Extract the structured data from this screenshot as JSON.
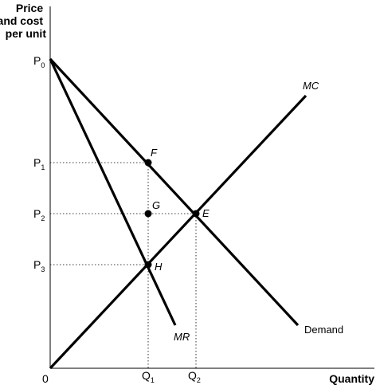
{
  "axes": {
    "y_title_lines": [
      "Price",
      "and cost",
      "per unit"
    ],
    "x_title": "Quantity",
    "origin": "0"
  },
  "y_ticks": [
    {
      "base": "P",
      "sub": "0"
    },
    {
      "base": "P",
      "sub": "1"
    },
    {
      "base": "P",
      "sub": "2"
    },
    {
      "base": "P",
      "sub": "3"
    }
  ],
  "x_ticks": [
    {
      "base": "Q",
      "sub": "1"
    },
    {
      "base": "Q",
      "sub": "2"
    }
  ],
  "curves": {
    "mc": "MC",
    "demand": "Demand",
    "mr": "MR"
  },
  "points": {
    "f": "F",
    "g": "G",
    "e": "E",
    "h": "H"
  }
}
